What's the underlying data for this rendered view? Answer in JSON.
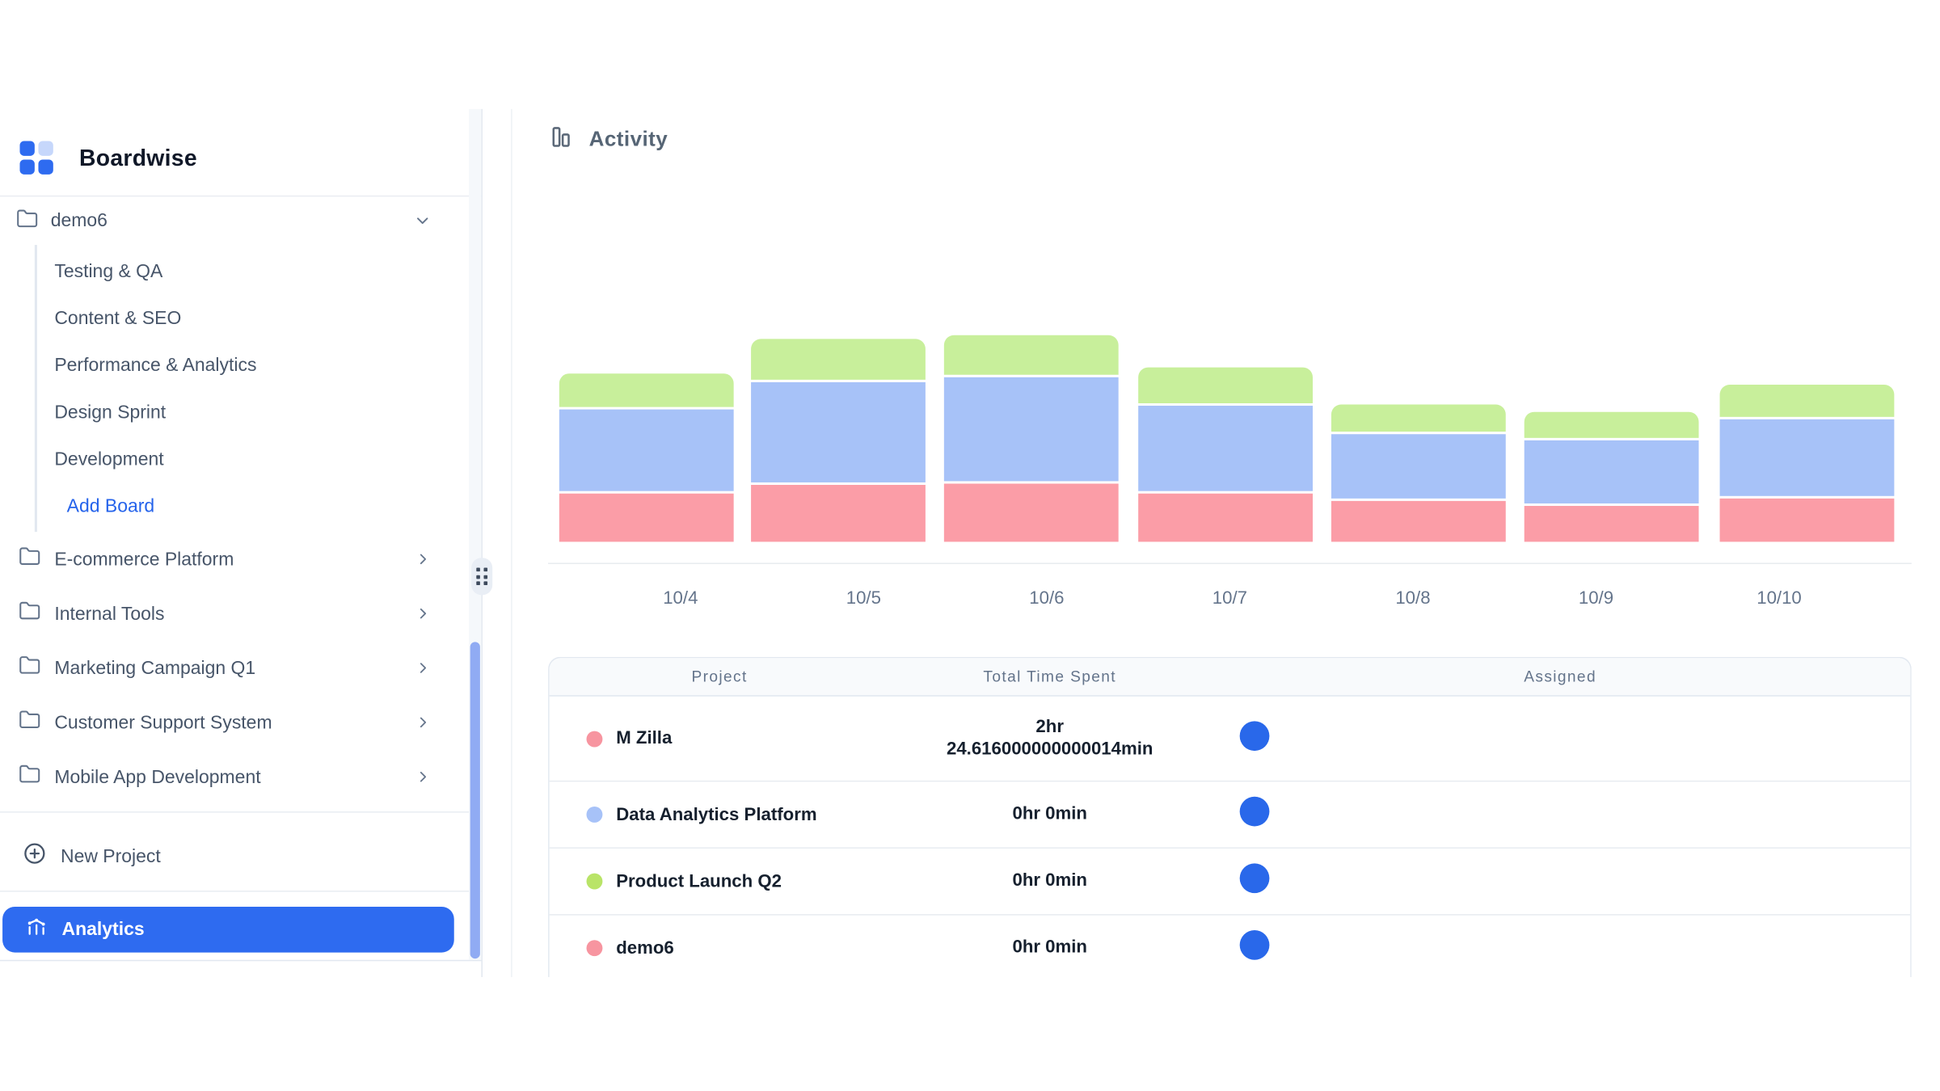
{
  "brand": {
    "name": "Boardwise",
    "logo_color": "#2e6bf0",
    "logo_light_color": "#c6d7fb"
  },
  "sidebar": {
    "demo6": {
      "label": "demo6",
      "boards": [
        "Testing & QA",
        "Content & SEO",
        "Performance & Analytics",
        "Design Sprint",
        "Development"
      ],
      "add_board_label": "Add Board"
    },
    "projects": [
      "E-commerce Platform",
      "Internal Tools",
      "Marketing Campaign Q1",
      "Customer Support System",
      "Mobile App Development"
    ],
    "new_project_label": "New Project",
    "analytics_label": "Analytics",
    "analytics_active_color": "#2e6bf0"
  },
  "main": {
    "title": "Activity"
  },
  "chart_data": {
    "type": "bar",
    "stacked": true,
    "categories": [
      "10/4",
      "10/5",
      "10/6",
      "10/7",
      "10/8",
      "10/9",
      "10/10"
    ],
    "series": [
      {
        "name": "M Zilla",
        "color": "#fb9da7",
        "values": [
          39,
          46,
          47,
          39,
          33,
          29,
          35
        ]
      },
      {
        "name": "Data Analytics Platform",
        "color": "#a7c2f8",
        "values": [
          66,
          81,
          84,
          69,
          52,
          51,
          62
        ]
      },
      {
        "name": "Product Launch Q2",
        "color": "#c8ef9b",
        "values": [
          27,
          33,
          32,
          29,
          22,
          21,
          26
        ]
      }
    ],
    "value_unit": "relative-height-estimated-px",
    "title": "Activity",
    "xlabel": "date",
    "ylabel": "",
    "grid": false,
    "legend": "none",
    "axis_line_color": "#e7ebf0"
  },
  "table": {
    "headers": [
      "Project",
      "Total Time Spent",
      "Assigned"
    ],
    "rows": [
      {
        "project": "M Zilla",
        "dot_color": "#f795a0",
        "time_lines": [
          "2hr",
          "24.616000000000014min"
        ],
        "assigned_color": "#2968ea"
      },
      {
        "project": "Data Analytics Platform",
        "dot_color": "#a7c2f8",
        "time_lines": [
          "0hr 0min"
        ],
        "assigned_color": "#2968ea"
      },
      {
        "project": "Product Launch Q2",
        "dot_color": "#b9e468",
        "time_lines": [
          "0hr 0min"
        ],
        "assigned_color": "#2968ea"
      },
      {
        "project": "demo6",
        "dot_color": "#f795a0",
        "time_lines": [
          "0hr 0min"
        ],
        "assigned_color": "#2968ea"
      }
    ]
  },
  "icons": {
    "logo": "grid-logo-icon",
    "folder": "folder-icon",
    "chevron_down": "chevron-down-icon",
    "chevron_right": "chevron-right-icon",
    "plus": "plus-circle-icon",
    "analytics": "chart-line-icon",
    "activity": "bar-chart-icon",
    "drag": "grip-dots-icon"
  }
}
